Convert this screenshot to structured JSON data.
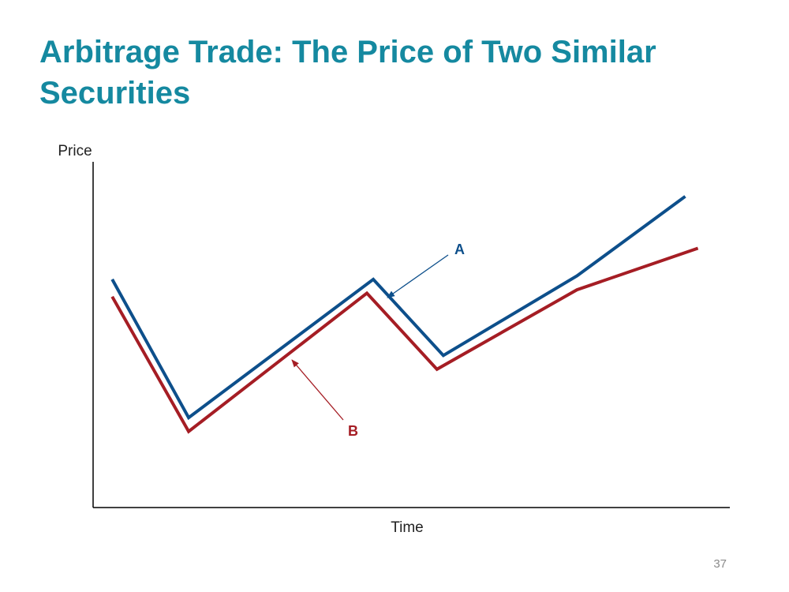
{
  "slide": {
    "title": "Arbitrage Trade: The Price of Two Similar Securities",
    "page_number": "37"
  },
  "chart_data": {
    "type": "line",
    "xlabel": "Time",
    "ylabel": "Price",
    "xlim": [
      0,
      100
    ],
    "ylim": [
      0,
      100
    ],
    "x_ticks_shown": false,
    "y_ticks_shown": false,
    "grid": false,
    "series": [
      {
        "name": "A",
        "color": "#0d4f8b",
        "points": [
          [
            3,
            66
          ],
          [
            15,
            26
          ],
          [
            44,
            66
          ],
          [
            55,
            44
          ],
          [
            76,
            67
          ],
          [
            93,
            90
          ]
        ]
      },
      {
        "name": "B",
        "color": "#a51d24",
        "points": [
          [
            3,
            61
          ],
          [
            15,
            22
          ],
          [
            43,
            62
          ],
          [
            54,
            40
          ],
          [
            76,
            63
          ],
          [
            95,
            75
          ]
        ]
      }
    ]
  }
}
